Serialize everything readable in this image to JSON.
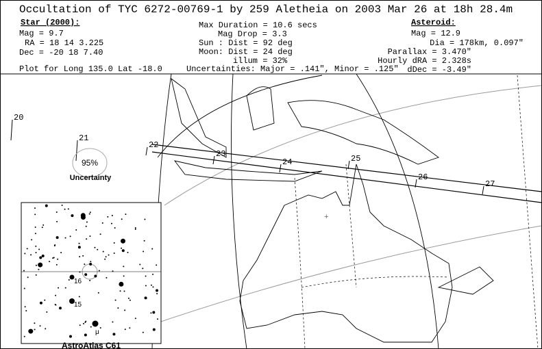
{
  "header": {
    "title": "Occultation of TYC 6272-00769-1 by 259 Aletheia on  2003 Mar 26 at 18h 28.4m",
    "star": {
      "heading": "Star (2000):",
      "lines": [
        "Mag = 9.7",
        "RA =  18 14  3.225",
        "Dec = -20 18  7.40"
      ]
    },
    "event": {
      "lines": [
        "Max Duration = 10.6 secs",
        "Mag Drop =  3.3",
        "Sun :   Dist = 92 deg",
        "Moon:   Dist = 24 deg",
        "illum = 32%"
      ]
    },
    "asteroid": {
      "heading": "Asteroid:",
      "lines": [
        "Mag = 12.9",
        "Dia = 178km, 0.097\"",
        "Parallax = 3.470\"",
        "Hourly dRA = 2.328s",
        "dDec = -3.49\""
      ]
    },
    "plot_for": "Plot for Long 135.0  Lat -18.0",
    "uncertainties": "Uncertainties: Major = .141\", Minor = .125\""
  },
  "map": {
    "time_marks": [
      "20",
      "21",
      "22",
      "23",
      "24",
      "25",
      "26",
      "27"
    ],
    "uncertainty_percent": "95%",
    "uncertainty_label": "Uncertainty"
  },
  "star_chart": {
    "labels": [
      "16",
      "15",
      "μ"
    ],
    "caption": "AstroAtlas C61"
  }
}
